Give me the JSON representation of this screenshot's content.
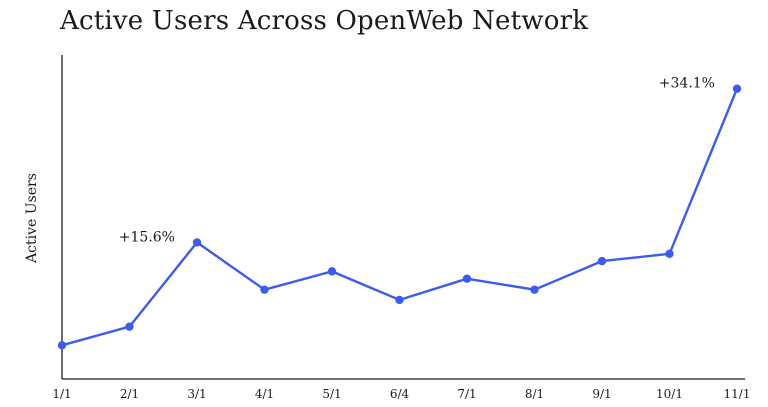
{
  "chart_data": {
    "type": "line",
    "title": "Active Users Across OpenWeb Network",
    "xlabel": "",
    "ylabel": "Active Users",
    "categories": [
      "1/1",
      "2/1",
      "3/1",
      "4/1",
      "5/1",
      "6/4",
      "7/1",
      "8/1",
      "9/1",
      "10/1",
      "11/1"
    ],
    "series": [
      {
        "values": [
          0,
          5.1,
          28.1,
          15.2,
          20.2,
          12.4,
          18.2,
          15.2,
          23.0,
          25.0,
          70.1
        ],
        "color": "#3a5cf0"
      }
    ],
    "ylim": [
      -9.2,
      79.3
    ],
    "annotations": [
      {
        "category": "3/1",
        "text": "+15.6%"
      },
      {
        "category": "11/1",
        "text": "+34.1%"
      }
    ],
    "grid": false,
    "axes": {
      "left_axis": true,
      "bottom_axis": true,
      "y_tick_labels": false
    }
  }
}
